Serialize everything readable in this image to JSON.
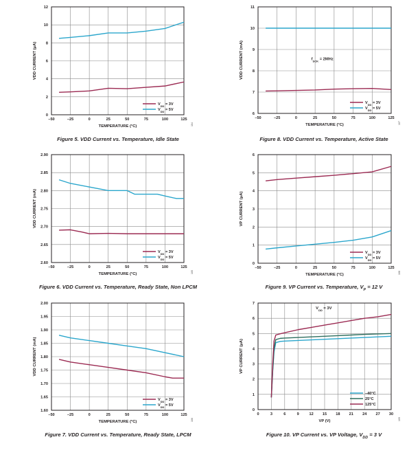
{
  "chart_data": [
    {
      "id": "fig5",
      "type": "line",
      "caption": "Figure 5. VDD Current vs. Temperature, Idle State",
      "side_code": "104",
      "xlabel": "TEMPERATURE (°C)",
      "ylabel": "VDD CURRENT (μA)",
      "xlim": [
        -50,
        125
      ],
      "ylim": [
        0,
        12
      ],
      "xticks": [
        -50,
        -25,
        0,
        25,
        50,
        75,
        100,
        125
      ],
      "yticks": [
        0,
        2,
        4,
        6,
        8,
        10,
        12
      ],
      "ytick_labels": [
        "0",
        "2",
        "4",
        "6",
        "8",
        "10",
        "12"
      ],
      "grid": true,
      "legend_position": "bottom-right",
      "series": [
        {
          "name": "VDD = 3V",
          "name_main": "V",
          "name_sub": "DD",
          "name_rest": " = 3V",
          "color": "#9b2a52",
          "x": [
            -40,
            -25,
            0,
            25,
            50,
            75,
            100,
            125
          ],
          "y": [
            2.5,
            2.55,
            2.65,
            2.95,
            2.9,
            3.05,
            3.2,
            3.65
          ]
        },
        {
          "name": "VDD = 5V",
          "name_main": "V",
          "name_sub": "DD",
          "name_rest": " = 5V",
          "color": "#2aa6cc",
          "x": [
            -40,
            -25,
            0,
            25,
            50,
            75,
            100,
            125
          ],
          "y": [
            8.5,
            8.6,
            8.8,
            9.1,
            9.1,
            9.3,
            9.6,
            10.3
          ]
        }
      ]
    },
    {
      "id": "fig8",
      "type": "line",
      "caption": "Figure 8. VDD Current vs. Temperature, Active State",
      "side_code": "107",
      "xlabel": "TEMPERATURE (°C)",
      "ylabel": "VDD CURRENT (mA)",
      "xlim": [
        -50,
        125
      ],
      "ylim": [
        6,
        11
      ],
      "xticks": [
        -50,
        -25,
        0,
        25,
        50,
        75,
        100,
        125
      ],
      "yticks": [
        6,
        7,
        8,
        9,
        10,
        11
      ],
      "ytick_labels": [
        "6",
        "7",
        "8",
        "9",
        "10",
        "11"
      ],
      "grid": true,
      "legend_position": "bottom-right",
      "annotation": {
        "main": "f",
        "sub": "SCK",
        "rest": " = 2MHz",
        "x": 20,
        "y": 8.5
      },
      "series": [
        {
          "name": "VDD = 3V",
          "name_main": "V",
          "name_sub": "DD",
          "name_rest": " = 3V",
          "color": "#9b2a52",
          "x": [
            -40,
            -25,
            0,
            25,
            50,
            75,
            100,
            125
          ],
          "y": [
            7.05,
            7.06,
            7.08,
            7.1,
            7.14,
            7.16,
            7.17,
            7.12
          ]
        },
        {
          "name": "VDD = 5V",
          "name_main": "V",
          "name_sub": "DD",
          "name_rest": " = 5V",
          "color": "#2aa6cc",
          "x": [
            -40,
            -25,
            0,
            25,
            50,
            75,
            100,
            125
          ],
          "y": [
            10,
            10,
            10,
            10,
            10,
            10,
            10,
            10
          ]
        }
      ]
    },
    {
      "id": "fig6",
      "type": "line",
      "caption": "Figure 6. VDD Current vs. Temperature, Ready State, Non LPCM",
      "side_code": "105",
      "xlabel": "TEMPERATURE (°C)",
      "ylabel": "VDD CURRENT (mA)",
      "xlim": [
        -50,
        125
      ],
      "ylim": [
        2.6,
        2.9
      ],
      "xticks": [
        -50,
        -25,
        0,
        25,
        50,
        75,
        100,
        125
      ],
      "yticks": [
        2.6,
        2.65,
        2.7,
        2.75,
        2.8,
        2.85,
        2.9
      ],
      "ytick_labels": [
        "2.60",
        "2.65",
        "2.70",
        "2.75",
        "2.80",
        "2.85",
        "2.90"
      ],
      "grid": true,
      "legend_position": "bottom-right",
      "series": [
        {
          "name": "VDD = 3V",
          "name_main": "V",
          "name_sub": "DD",
          "name_rest": " = 3V",
          "color": "#9b2a52",
          "x": [
            -40,
            -25,
            -10,
            0,
            25,
            50,
            75,
            100,
            125
          ],
          "y": [
            2.69,
            2.691,
            2.685,
            2.68,
            2.681,
            2.68,
            2.68,
            2.68,
            2.68
          ]
        },
        {
          "name": "VDD = 5V",
          "name_main": "V",
          "name_sub": "DD",
          "name_rest": " = 5V",
          "color": "#2aa6cc",
          "x": [
            -40,
            -25,
            0,
            25,
            50,
            60,
            75,
            90,
            100,
            115,
            125
          ],
          "y": [
            2.83,
            2.82,
            2.81,
            2.8,
            2.8,
            2.79,
            2.79,
            2.79,
            2.785,
            2.778,
            2.778
          ]
        }
      ]
    },
    {
      "id": "fig9",
      "type": "line",
      "caption_main": "Figure 9. VP Current vs. Temperature, V",
      "caption_sub": "P",
      "caption_rest": " = 12 V",
      "side_code": "108",
      "xlabel": "TEMPERATURE (°C)",
      "ylabel": "VP CURRENT (μA)",
      "xlim": [
        -50,
        125
      ],
      "ylim": [
        0,
        6
      ],
      "xticks": [
        -50,
        -25,
        0,
        25,
        50,
        75,
        100,
        125
      ],
      "yticks": [
        0,
        1,
        2,
        3,
        4,
        5,
        6
      ],
      "ytick_labels": [
        "0",
        "1",
        "2",
        "3",
        "4",
        "5",
        "6"
      ],
      "grid": true,
      "legend_position": "bottom-right",
      "series": [
        {
          "name": "VDD = 3V",
          "name_main": "V",
          "name_sub": "DD",
          "name_rest": " = 3V",
          "color": "#9b2a52",
          "x": [
            -40,
            -25,
            0,
            25,
            50,
            75,
            100,
            125
          ],
          "y": [
            4.55,
            4.62,
            4.7,
            4.78,
            4.86,
            4.95,
            5.05,
            5.35
          ]
        },
        {
          "name": "VDD = 5V",
          "name_main": "V",
          "name_sub": "DD",
          "name_rest": " = 5V",
          "color": "#2aa6cc",
          "x": [
            -40,
            -25,
            0,
            25,
            50,
            75,
            100,
            125
          ],
          "y": [
            0.78,
            0.85,
            0.95,
            1.05,
            1.15,
            1.27,
            1.45,
            1.8
          ]
        }
      ]
    },
    {
      "id": "fig7",
      "type": "line",
      "caption": "Figure 7. VDD Current vs. Temperature, Ready State, LPCM",
      "side_code": "106",
      "xlabel": "TEMPERATURE (°C)",
      "ylabel": "VDD CURRENT (mA)",
      "xlim": [
        -50,
        125
      ],
      "ylim": [
        1.6,
        2.0
      ],
      "xticks": [
        -50,
        -25,
        0,
        25,
        50,
        75,
        100,
        125
      ],
      "yticks": [
        1.6,
        1.65,
        1.7,
        1.75,
        1.8,
        1.85,
        1.9,
        1.95,
        2.0
      ],
      "ytick_labels": [
        "1.60",
        "1.65",
        "1.70",
        "1.75",
        "1.80",
        "1.85",
        "1.90",
        "1.95",
        "2.00"
      ],
      "grid": true,
      "legend_position": "bottom-right",
      "series": [
        {
          "name": "VDD = 3V",
          "name_main": "V",
          "name_sub": "DD",
          "name_rest": " = 3V",
          "color": "#9b2a52",
          "x": [
            -40,
            -25,
            0,
            25,
            50,
            75,
            100,
            110,
            125
          ],
          "y": [
            1.79,
            1.78,
            1.77,
            1.76,
            1.75,
            1.74,
            1.725,
            1.72,
            1.72
          ]
        },
        {
          "name": "VDD = 5V",
          "name_main": "V",
          "name_sub": "DD",
          "name_rest": " = 5V",
          "color": "#2aa6cc",
          "x": [
            -40,
            -25,
            0,
            25,
            50,
            75,
            100,
            125
          ],
          "y": [
            1.88,
            1.87,
            1.86,
            1.85,
            1.84,
            1.83,
            1.815,
            1.8
          ]
        }
      ]
    },
    {
      "id": "fig10",
      "type": "line",
      "caption_main": "Figure 10. VP Current vs. VP Voltage, V",
      "caption_sub": "DD",
      "caption_rest": " = 3 V",
      "side_code": "109",
      "xlabel": "VP (V)",
      "ylabel": "VP CURRENT (μA)",
      "xlim": [
        0,
        30
      ],
      "ylim": [
        0,
        7
      ],
      "xticks": [
        0,
        3,
        6,
        9,
        12,
        15,
        18,
        21,
        24,
        27,
        30
      ],
      "yticks": [
        0,
        1,
        2,
        3,
        4,
        5,
        6,
        7
      ],
      "ytick_labels": [
        "0",
        "1",
        "2",
        "3",
        "4",
        "5",
        "6",
        "7"
      ],
      "grid": true,
      "legend_position": "bottom-right",
      "annotation": {
        "main": "V",
        "sub": "DD",
        "rest": " = 3V",
        "x": 13,
        "y": 6.6
      },
      "series": [
        {
          "name": "–40°C",
          "color": "#2aa6cc",
          "x": [
            3,
            3.3,
            3.6,
            4,
            5,
            6,
            9,
            12,
            15,
            18,
            21,
            24,
            27,
            30
          ],
          "y": [
            0.8,
            2.5,
            3.8,
            4.4,
            4.48,
            4.5,
            4.54,
            4.58,
            4.62,
            4.66,
            4.7,
            4.74,
            4.78,
            4.82
          ]
        },
        {
          "name": "25°C",
          "color": "#2d6e5e",
          "x": [
            3,
            3.3,
            3.6,
            4,
            5,
            6,
            9,
            12,
            15,
            18,
            21,
            24,
            27,
            30
          ],
          "y": [
            0.8,
            2.6,
            4.0,
            4.6,
            4.68,
            4.7,
            4.74,
            4.78,
            4.82,
            4.86,
            4.9,
            4.94,
            4.97,
            5.0
          ]
        },
        {
          "name": "125°C",
          "color": "#9b2a52",
          "x": [
            3,
            3.3,
            3.6,
            4,
            5,
            6,
            9,
            12,
            15,
            18,
            21,
            24,
            27,
            30
          ],
          "y": [
            0.8,
            3.0,
            4.5,
            4.9,
            4.98,
            5.05,
            5.25,
            5.4,
            5.55,
            5.7,
            5.85,
            6.0,
            6.1,
            6.25
          ]
        }
      ]
    }
  ]
}
